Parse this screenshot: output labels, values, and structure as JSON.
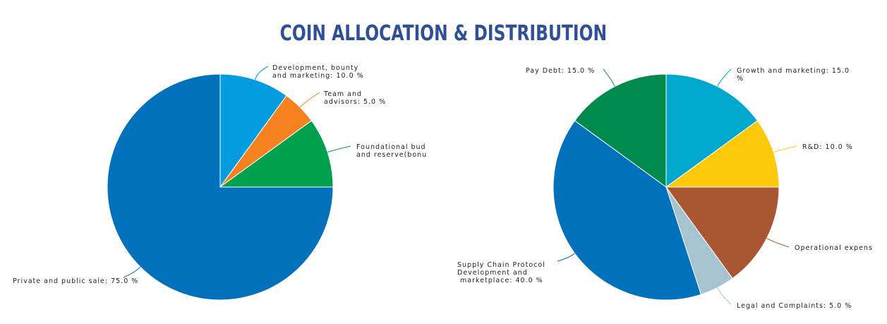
{
  "page": {
    "title": "COIN ALLOCATION & DISTRIBUTION"
  },
  "colors": {
    "title": "#2f4f97",
    "slice_border": "#ffffff"
  },
  "chart_data": [
    {
      "type": "pie",
      "title": "",
      "slices": [
        {
          "name": "Development, bounty and marketing",
          "value": 10.0,
          "color": "#039ddf",
          "label_lines": [
            "Development, bounty",
            "and marketing: 10.0 %"
          ]
        },
        {
          "name": "Team and advisors",
          "value": 5.0,
          "color": "#f5821f",
          "label_lines": [
            "Team and",
            "advisors: 5.0 %"
          ]
        },
        {
          "name": "Foundational budget and reserve(bounty)",
          "value": 10.0,
          "color": "#00a04e",
          "label_lines": [
            "Foundational bud",
            "and reserve(bonu"
          ]
        },
        {
          "name": "Private and public sale",
          "value": 75.0,
          "color": "#0171bc",
          "label_lines": [
            "Private and public sale: 75.0 %"
          ]
        }
      ]
    },
    {
      "type": "pie",
      "title": "",
      "slices": [
        {
          "name": "Growth and marketing",
          "value": 15.0,
          "color": "#01a8ce",
          "label_lines": [
            "Growth and marketing: 15.0",
            "%"
          ]
        },
        {
          "name": "R&D",
          "value": 10.0,
          "color": "#fdc90b",
          "label_lines": [
            "R&D: 10.0 %"
          ]
        },
        {
          "name": "Operational expenses",
          "value": 15.0,
          "color": "#a95633",
          "label_lines": [
            "Operational expens"
          ]
        },
        {
          "name": "Legal and Complaints",
          "value": 5.0,
          "color": "#a6c3d1",
          "label_lines": [
            "Legal and Complaints: 5.0 %"
          ]
        },
        {
          "name": "Supply Chain Protocol Development and marketplace",
          "value": 40.0,
          "color": "#0171bc",
          "label_lines": [
            "Supply Chain Protocol",
            "Development and",
            " marketplace: 40.0 %"
          ]
        },
        {
          "name": "Pay Debt",
          "value": 15.0,
          "color": "#018a4e",
          "label_lines": [
            "Pay Debt: 15.0 %"
          ]
        }
      ]
    }
  ]
}
